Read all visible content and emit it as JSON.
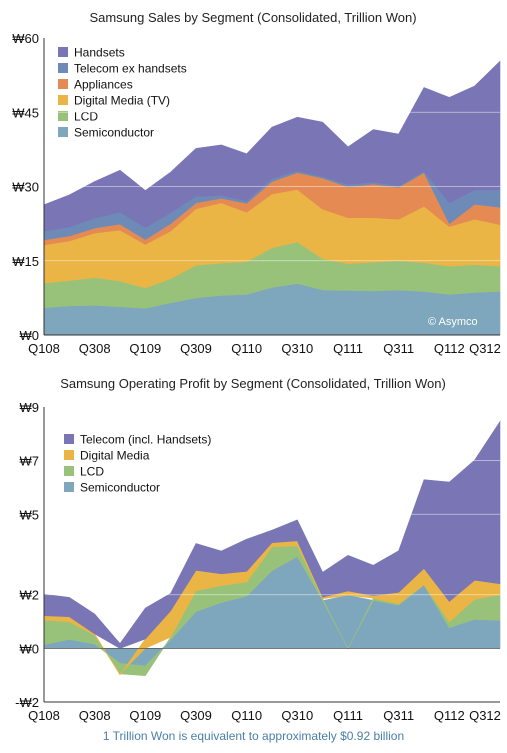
{
  "footnote": "1 Trillion Won is equivalent to approximately $0.92 billion",
  "chart_data": [
    {
      "type": "area",
      "stacked": true,
      "title": "Samsung Sales by Segment (Consolidated, Trillion Won)",
      "credit": "© Asymco",
      "categories": [
        "Q108",
        "Q208",
        "Q308",
        "Q408",
        "Q109",
        "Q209",
        "Q309",
        "Q409",
        "Q110",
        "Q210",
        "Q310",
        "Q410",
        "Q111",
        "Q211",
        "Q311",
        "Q411",
        "Q112",
        "Q212",
        "Q312"
      ],
      "x_tick_labels": [
        "Q108",
        "Q308",
        "Q109",
        "Q309",
        "Q110",
        "Q310",
        "Q111",
        "Q311",
        "Q112",
        "Q312"
      ],
      "y_ticks": [
        0,
        15,
        30,
        45,
        60
      ],
      "y_tick_labels": [
        "₩0",
        "₩15",
        "₩30",
        "₩45",
        "₩60"
      ],
      "ylim": [
        0,
        60
      ],
      "legend_position": "top-left",
      "series": [
        {
          "name": "Semiconductor",
          "color": "#7ea6bd",
          "values": [
            5.5,
            5.9,
            6.0,
            5.7,
            5.4,
            6.5,
            7.5,
            8.0,
            8.2,
            9.6,
            10.4,
            9.1,
            9.0,
            8.9,
            9.1,
            8.8,
            8.2,
            8.6,
            8.8
          ]
        },
        {
          "name": "LCD",
          "color": "#98c27a",
          "values": [
            5.0,
            5.1,
            5.6,
            5.2,
            4.1,
            4.9,
            6.6,
            6.5,
            6.6,
            8.0,
            8.4,
            6.3,
            5.4,
            5.8,
            5.9,
            5.8,
            5.7,
            5.6,
            5.1
          ]
        },
        {
          "name": "Digital Media (TV)",
          "color": "#eab545",
          "values": [
            7.7,
            8.0,
            9.0,
            10.3,
            8.8,
            9.6,
            11.4,
            12.2,
            10.0,
            10.9,
            10.6,
            10.0,
            9.3,
            9.0,
            8.4,
            11.4,
            8.0,
            9.2,
            8.4
          ]
        },
        {
          "name": "Appliances",
          "color": "#e58a52",
          "values": [
            1.0,
            1.0,
            1.0,
            1.2,
            1.0,
            1.5,
            1.2,
            0.9,
            1.8,
            2.5,
            3.4,
            6.3,
            6.2,
            6.8,
            6.4,
            6.8,
            0.6,
            3.0,
            3.5
          ]
        },
        {
          "name": "Telecom ex handsets",
          "color": "#6e8bb8",
          "values": [
            1.8,
            1.8,
            2.0,
            2.4,
            2.4,
            2.2,
            1.3,
            0.6,
            0.5,
            0.6,
            0.4,
            0.3,
            0.5,
            0.4,
            0.3,
            0.3,
            4.2,
            2.9,
            3.5
          ]
        },
        {
          "name": "Handsets",
          "color": "#7a76b6",
          "values": [
            5.3,
            6.5,
            7.4,
            8.5,
            7.5,
            8.2,
            9.7,
            10.2,
            9.5,
            10.4,
            10.8,
            11.0,
            7.6,
            10.6,
            10.5,
            16.9,
            21.3,
            21.0,
            26.0
          ]
        }
      ]
    },
    {
      "type": "area",
      "stacked": true,
      "title": "Samsung Operating Profit by Segment (Consolidated, Trillion Won)",
      "categories": [
        "Q108",
        "Q208",
        "Q308",
        "Q408",
        "Q109",
        "Q209",
        "Q309",
        "Q409",
        "Q110",
        "Q210",
        "Q310",
        "Q410",
        "Q111",
        "Q211",
        "Q311",
        "Q411",
        "Q112",
        "Q212",
        "Q312"
      ],
      "x_tick_labels": [
        "Q108",
        "Q308",
        "Q109",
        "Q309",
        "Q110",
        "Q310",
        "Q111",
        "Q311",
        "Q112",
        "Q312"
      ],
      "y_ticks": [
        -2,
        0,
        2,
        5,
        7,
        9
      ],
      "y_tick_labels": [
        "-₩2",
        "₩0",
        "₩2",
        "₩5",
        "₩7",
        "₩9"
      ],
      "ylim": [
        -2,
        9
      ],
      "legend_position": "top-left",
      "series": [
        {
          "name": "Semiconductor",
          "color": "#7ea6bd",
          "values": [
            0.14,
            0.33,
            0.16,
            -0.56,
            -0.66,
            0.32,
            1.37,
            1.71,
            1.95,
            2.9,
            3.42,
            1.78,
            1.98,
            1.79,
            1.61,
            2.36,
            0.77,
            1.08,
            1.04
          ]
        },
        {
          "name": "LCD",
          "color": "#98c27a",
          "values": [
            0.92,
            0.66,
            0.33,
            -0.39,
            -0.36,
            0.1,
            0.78,
            0.63,
            0.52,
            0.88,
            0.41,
            0.07,
            -0.02,
            0.08,
            0.05,
            0.01,
            0.22,
            0.75,
            0.96
          ]
        },
        {
          "name": "Digital Media",
          "color": "#eab545",
          "values": [
            0.16,
            0.19,
            0.05,
            -0.04,
            0.35,
            0.98,
            0.76,
            0.44,
            0.4,
            0.16,
            0.18,
            0.06,
            0.16,
            0.1,
            0.43,
            0.61,
            0.76,
            0.71,
            0.41
          ]
        },
        {
          "name": "Telecom (incl. Handsets)",
          "color": "#7a76b6",
          "values": [
            0.8,
            0.72,
            0.74,
            0.18,
            1.15,
            0.65,
            1.0,
            0.85,
            1.2,
            0.47,
            0.78,
            0.93,
            1.33,
            1.13,
            1.55,
            3.31,
            4.45,
            4.48,
            6.05
          ]
        }
      ]
    }
  ]
}
